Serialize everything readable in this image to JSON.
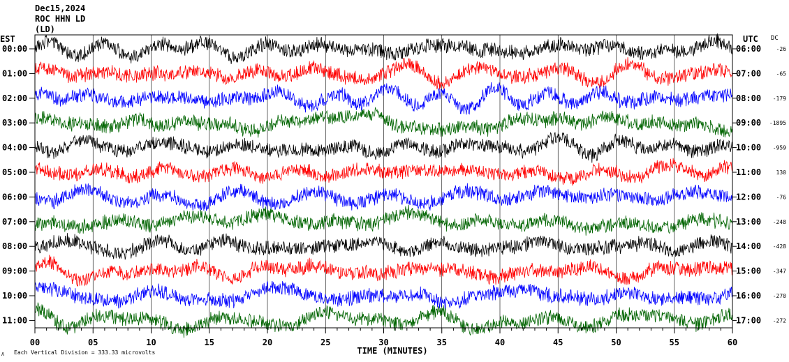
{
  "header": {
    "date": "Dec15,2024",
    "station": "ROC HHN LD",
    "network": "(LD)"
  },
  "chart_data": {
    "type": "line",
    "title": "Dec15,2024",
    "xlabel": "TIME (MINUTES)",
    "ylabel_left": "EST",
    "ylabel_right": "UTC",
    "dc_label": "DC",
    "xlim": [
      0,
      60
    ],
    "x_ticks": [
      "00",
      "05",
      "10",
      "15",
      "20",
      "25",
      "30",
      "35",
      "40",
      "45",
      "50",
      "55",
      "60"
    ],
    "grid": true,
    "rows": [
      {
        "est": "00:00",
        "utc": "06:00",
        "dc": "-26",
        "color": "#000000"
      },
      {
        "est": "01:00",
        "utc": "07:00",
        "dc": "-65",
        "color": "#ff0000"
      },
      {
        "est": "02:00",
        "utc": "08:00",
        "dc": "-179",
        "color": "#0000ff"
      },
      {
        "est": "03:00",
        "utc": "09:00",
        "dc": "-1895",
        "color": "#006400"
      },
      {
        "est": "04:00",
        "utc": "10:00",
        "dc": "-959",
        "color": "#000000"
      },
      {
        "est": "05:00",
        "utc": "11:00",
        "dc": "130",
        "color": "#ff0000"
      },
      {
        "est": "06:00",
        "utc": "12:00",
        "dc": "-76",
        "color": "#0000ff"
      },
      {
        "est": "07:00",
        "utc": "13:00",
        "dc": "-248",
        "color": "#006400"
      },
      {
        "est": "08:00",
        "utc": "14:00",
        "dc": "-428",
        "color": "#000000"
      },
      {
        "est": "09:00",
        "utc": "15:00",
        "dc": "-347",
        "color": "#ff0000"
      },
      {
        "est": "10:00",
        "utc": "16:00",
        "dc": "-270",
        "color": "#0000ff"
      },
      {
        "est": "11:00",
        "utc": "17:00",
        "dc": "-272",
        "color": "#006400"
      }
    ]
  },
  "footer": {
    "scale_note": "Each Vertical Division =  333.33 microvolts"
  }
}
